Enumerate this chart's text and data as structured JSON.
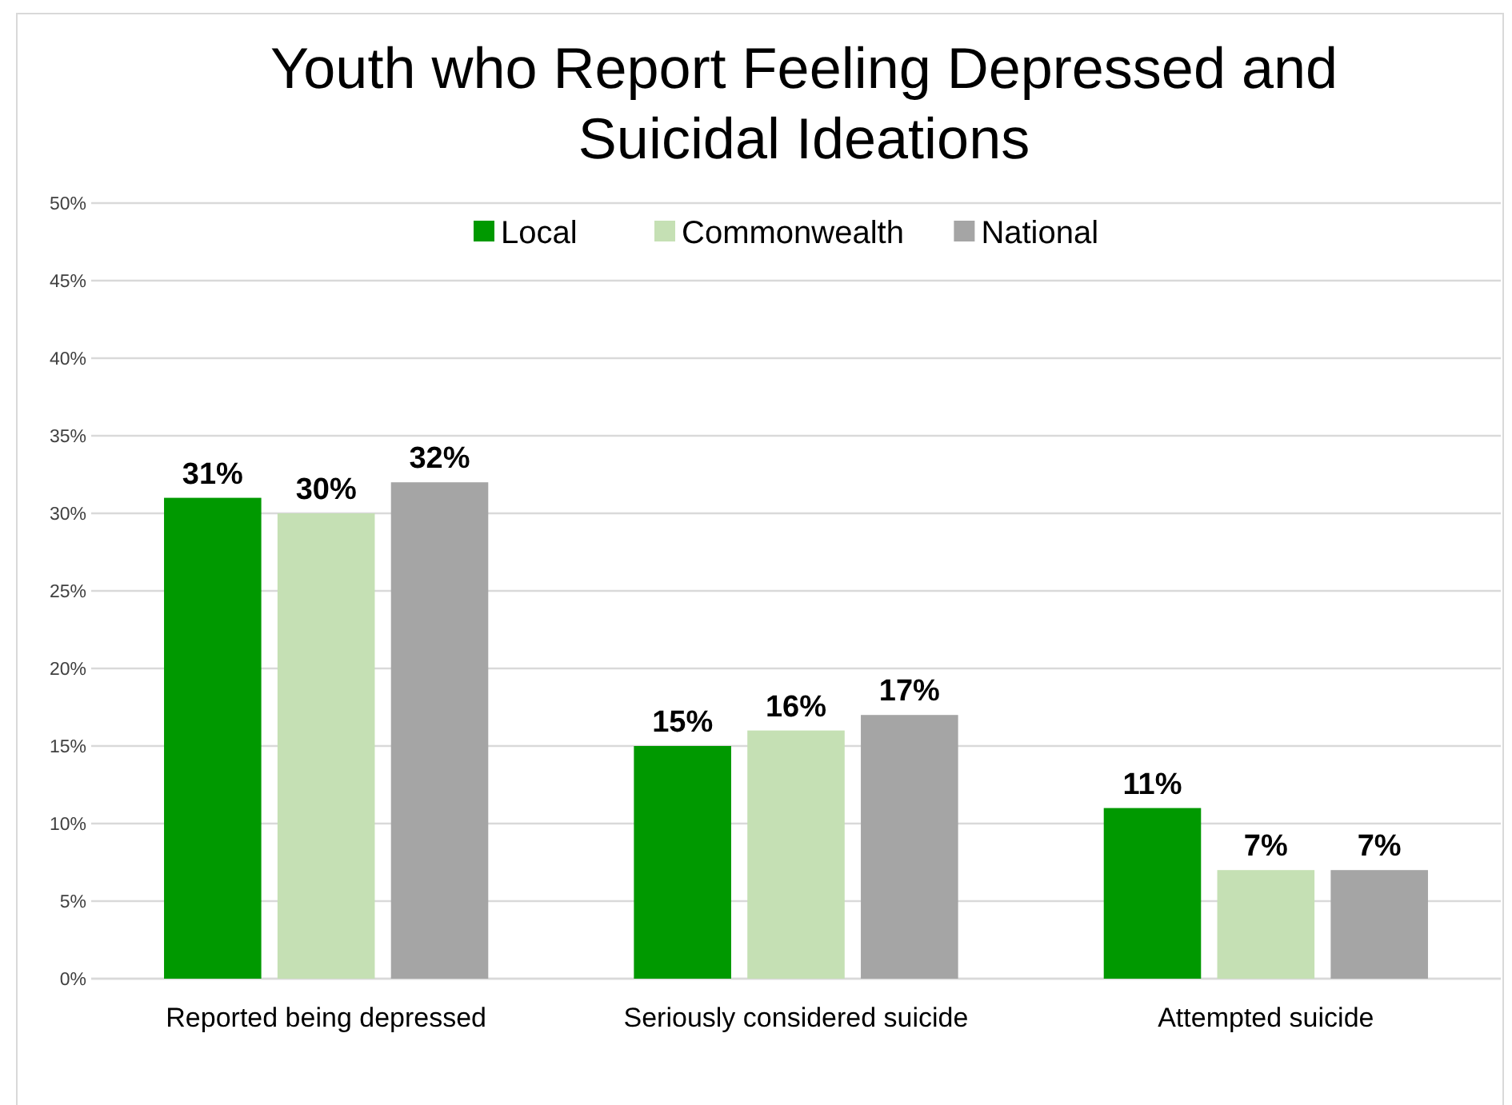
{
  "chart_data": {
    "type": "bar",
    "title": "Youth who Report Feeling Depressed and Suicidal Ideations",
    "categories": [
      "Reported being depressed",
      "Seriously considered suicide",
      "Attempted suicide"
    ],
    "series": [
      {
        "name": "Local",
        "color": "#009900",
        "values": [
          31,
          15,
          11
        ],
        "value_labels": [
          "31%",
          "15%",
          "11%"
        ]
      },
      {
        "name": "Commonwealth",
        "color": "#c5e0b4",
        "values": [
          30,
          16,
          7
        ],
        "value_labels": [
          "30%",
          "16%",
          "7%"
        ]
      },
      {
        "name": "National",
        "color": "#a5a5a5",
        "values": [
          32,
          17,
          7
        ],
        "value_labels": [
          "32%",
          "17%",
          "7%"
        ]
      }
    ],
    "ylim": [
      0,
      50
    ],
    "yticks": [
      {
        "value": 0,
        "label": "0%"
      },
      {
        "value": 5,
        "label": "5%"
      },
      {
        "value": 10,
        "label": "10%"
      },
      {
        "value": 15,
        "label": "15%"
      },
      {
        "value": 20,
        "label": "20%"
      },
      {
        "value": 25,
        "label": "25%"
      },
      {
        "value": 30,
        "label": "30%"
      },
      {
        "value": 35,
        "label": "35%"
      },
      {
        "value": 40,
        "label": "40%"
      },
      {
        "value": 45,
        "label": "45%"
      },
      {
        "value": 50,
        "label": "50%"
      }
    ],
    "grid": "y",
    "legend": "top"
  }
}
